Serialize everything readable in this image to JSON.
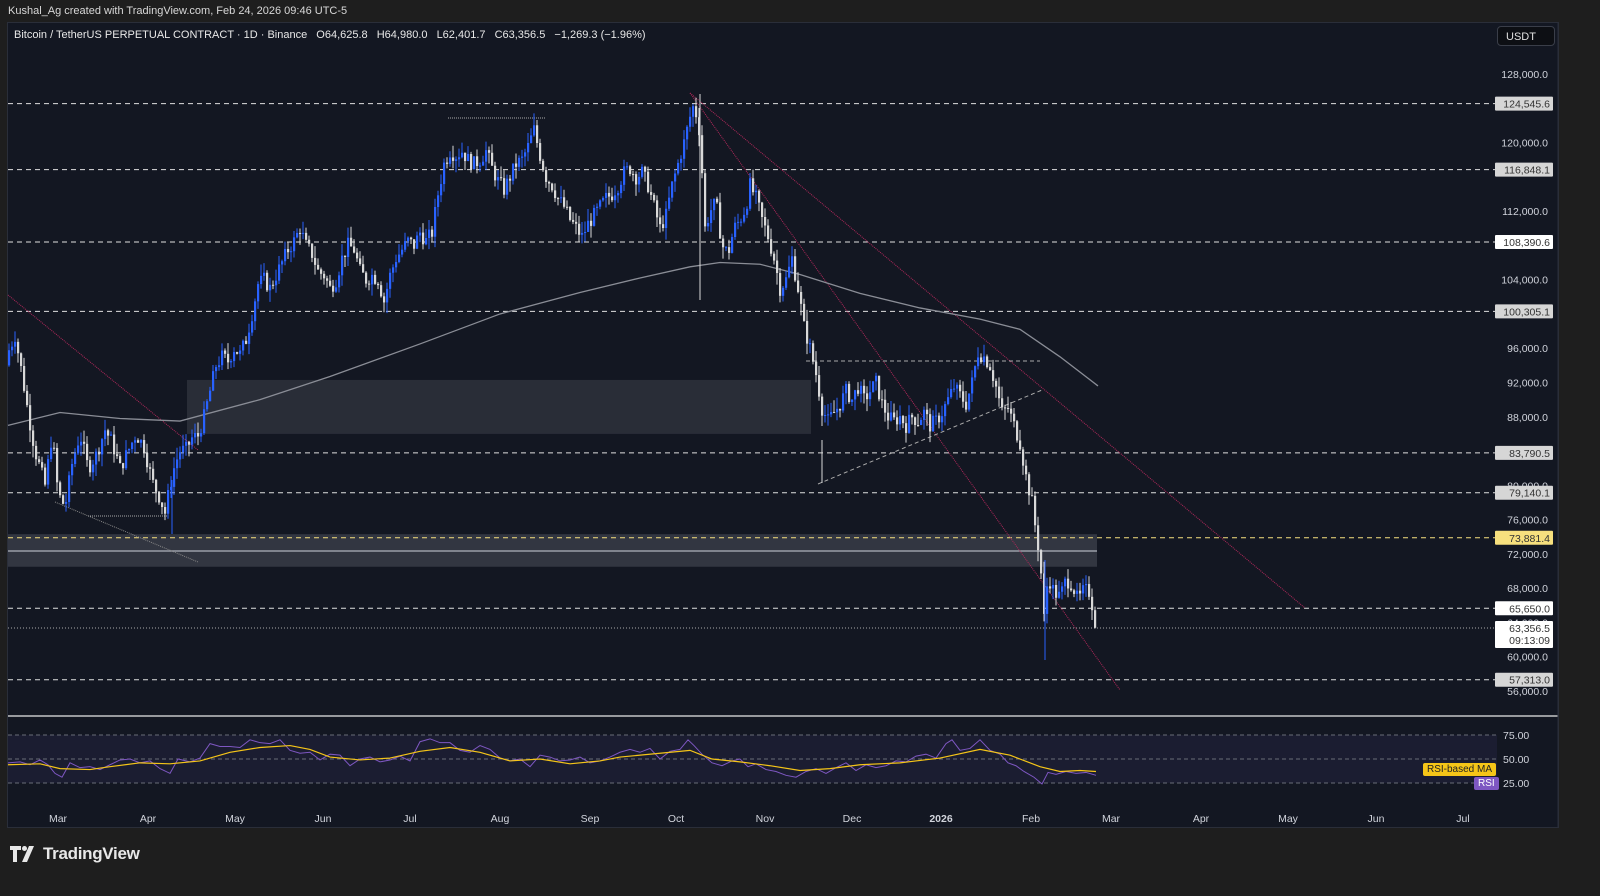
{
  "header": {
    "credit": "Kushal_Ag created with TradingView.com, Feb 24, 2026 09:46 UTC-5",
    "symbol": "Bitcoin / TetherUS PERPETUAL CONTRACT · 1D · Binance",
    "open": "O64,625.8",
    "high": "H64,980.0",
    "low": "L62,401.7",
    "close": "C63,356.5",
    "change": "−1,269.3 (−1.96%)",
    "currency": "USDT"
  },
  "footer": {
    "brand": "TradingView"
  },
  "colors": {
    "background": "#131722",
    "up_candle": "#2962ff",
    "down_candle": "#d9d9d9",
    "ma_line": "#8a8d96",
    "trendline_red": "#b0285a",
    "rsi_line": "#7e57c2",
    "rsi_ma": "#f5c518",
    "highlight_level": "#f7e07e"
  },
  "rsi_panel": {
    "ma_label": "RSI-based MA",
    "rsi_label": "RSI",
    "levels": [
      "75.00",
      "50.00",
      "25.00"
    ]
  },
  "chart_data": {
    "type": "candlestick",
    "title": "Bitcoin / TetherUS PERPETUAL CONTRACT · 1D · Binance",
    "ylabel": "USDT",
    "ylim": [
      54000,
      130000
    ],
    "y_ticks": [
      "128,000.0",
      "120,000.0",
      "112,000.0",
      "104,000.0",
      "96,000.0",
      "92,000.0",
      "88,000.0",
      "80,000.0",
      "76,000.0",
      "72,000.0",
      "68,000.0",
      "64,000.0",
      "60,000.0",
      "56,000.0"
    ],
    "x_ticks": [
      "Mar",
      "Apr",
      "May",
      "Jun",
      "Jul",
      "Aug",
      "Sep",
      "Oct",
      "Nov",
      "Dec",
      "2026",
      "Feb",
      "Mar",
      "Apr",
      "May",
      "Jun",
      "Jul"
    ],
    "horizontal_levels": [
      {
        "value": "124,545.6",
        "style": "dashed"
      },
      {
        "value": "116,848.1",
        "style": "dashed"
      },
      {
        "value": "108,390.6",
        "style": "dashed"
      },
      {
        "value": "100,305.1",
        "style": "dashed"
      },
      {
        "value": "83,790.5",
        "style": "dashed"
      },
      {
        "value": "79,140.1",
        "style": "dashed"
      },
      {
        "value": "73,881.4",
        "style": "dashed-yellow"
      },
      {
        "value": "65,650.0",
        "style": "dashed"
      },
      {
        "value": "57,313.0",
        "style": "dashed"
      }
    ],
    "last_price": {
      "value": "63,356.5",
      "countdown": "09:13:09"
    },
    "zones": [
      {
        "name": "supply-zone",
        "from": 86000,
        "to": 92300
      },
      {
        "name": "demand-zone",
        "from": 70500,
        "to": 74300
      }
    ],
    "price_path": [
      [
        0,
        94000
      ],
      [
        8,
        95500
      ],
      [
        15,
        97500
      ],
      [
        22,
        93000
      ],
      [
        28,
        88500
      ],
      [
        35,
        84000
      ],
      [
        45,
        80000
      ],
      [
        52,
        86000
      ],
      [
        58,
        79000
      ],
      [
        65,
        77500
      ],
      [
        72,
        82500
      ],
      [
        80,
        86000
      ],
      [
        88,
        82000
      ],
      [
        96,
        83500
      ],
      [
        105,
        86500
      ],
      [
        112,
        85000
      ],
      [
        120,
        82000
      ],
      [
        128,
        84000
      ],
      [
        136,
        86000
      ],
      [
        144,
        84500
      ],
      [
        152,
        80500
      ],
      [
        160,
        78500
      ],
      [
        165,
        76800
      ],
      [
        170,
        80000
      ],
      [
        175,
        82500
      ],
      [
        180,
        84000
      ],
      [
        186,
        84200
      ],
      [
        192,
        85500
      ],
      [
        198,
        85800
      ],
      [
        204,
        88000
      ],
      [
        210,
        91000
      ],
      [
        216,
        94000
      ],
      [
        222,
        95000
      ],
      [
        228,
        94500
      ],
      [
        234,
        96000
      ],
      [
        240,
        95300
      ],
      [
        246,
        97000
      ],
      [
        252,
        100000
      ],
      [
        258,
        103500
      ],
      [
        264,
        104000
      ],
      [
        270,
        103000
      ],
      [
        276,
        104500
      ],
      [
        282,
        106000
      ],
      [
        288,
        107500
      ],
      [
        294,
        108500
      ],
      [
        300,
        110000
      ],
      [
        306,
        108000
      ],
      [
        312,
        107000
      ],
      [
        318,
        105000
      ],
      [
        324,
        104500
      ],
      [
        330,
        103000
      ],
      [
        336,
        104000
      ],
      [
        342,
        106500
      ],
      [
        348,
        108000
      ],
      [
        354,
        107500
      ],
      [
        360,
        105000
      ],
      [
        366,
        104000
      ],
      [
        372,
        104500
      ],
      [
        378,
        104000
      ],
      [
        384,
        101500
      ],
      [
        390,
        104500
      ],
      [
        396,
        106500
      ],
      [
        402,
        107500
      ],
      [
        408,
        108500
      ],
      [
        414,
        108000
      ],
      [
        420,
        109500
      ],
      [
        426,
        108500
      ],
      [
        432,
        109500
      ],
      [
        438,
        114000
      ],
      [
        444,
        117500
      ],
      [
        450,
        119000
      ],
      [
        456,
        118500
      ],
      [
        462,
        119000
      ],
      [
        468,
        118000
      ],
      [
        474,
        117500
      ],
      [
        480,
        118000
      ],
      [
        486,
        119000
      ],
      [
        492,
        117000
      ],
      [
        498,
        115500
      ],
      [
        504,
        114500
      ],
      [
        510,
        116000
      ],
      [
        516,
        117500
      ],
      [
        522,
        118000
      ],
      [
        528,
        119500
      ],
      [
        534,
        121500
      ],
      [
        540,
        118500
      ],
      [
        546,
        116000
      ],
      [
        552,
        115000
      ],
      [
        558,
        113500
      ],
      [
        564,
        112500
      ],
      [
        570,
        111000
      ],
      [
        576,
        110000
      ],
      [
        582,
        109000
      ],
      [
        588,
        110500
      ],
      [
        594,
        111500
      ],
      [
        600,
        112500
      ],
      [
        606,
        113500
      ],
      [
        612,
        114000
      ],
      [
        618,
        115000
      ],
      [
        624,
        116500
      ],
      [
        630,
        117000
      ],
      [
        636,
        116000
      ],
      [
        642,
        116500
      ],
      [
        648,
        115000
      ],
      [
        654,
        112500
      ],
      [
        660,
        110000
      ],
      [
        666,
        111500
      ],
      [
        672,
        115000
      ],
      [
        678,
        117500
      ],
      [
        684,
        120000
      ],
      [
        690,
        123000
      ],
      [
        694,
        124500
      ],
      [
        700,
        121000
      ],
      [
        705,
        110000
      ],
      [
        710,
        112000
      ],
      [
        716,
        113000
      ],
      [
        722,
        108000
      ],
      [
        728,
        107000
      ],
      [
        734,
        110000
      ],
      [
        740,
        111000
      ],
      [
        746,
        112500
      ],
      [
        750,
        115000
      ],
      [
        756,
        113500
      ],
      [
        762,
        111000
      ],
      [
        768,
        109000
      ],
      [
        774,
        106500
      ],
      [
        780,
        103000
      ],
      [
        786,
        104000
      ],
      [
        792,
        106500
      ],
      [
        798,
        103000
      ],
      [
        804,
        98500
      ],
      [
        810,
        96000
      ],
      [
        816,
        93000
      ],
      [
        822,
        89000
      ],
      [
        828,
        87500
      ],
      [
        834,
        88500
      ],
      [
        840,
        89500
      ],
      [
        846,
        91000
      ],
      [
        852,
        90000
      ],
      [
        858,
        91500
      ],
      [
        864,
        90000
      ],
      [
        870,
        91000
      ],
      [
        876,
        92000
      ],
      [
        882,
        89500
      ],
      [
        888,
        88000
      ],
      [
        894,
        87500
      ],
      [
        900,
        88000
      ],
      [
        906,
        87000
      ],
      [
        912,
        88000
      ],
      [
        918,
        87500
      ],
      [
        924,
        88500
      ],
      [
        930,
        87000
      ],
      [
        936,
        87500
      ],
      [
        942,
        88500
      ],
      [
        948,
        90000
      ],
      [
        954,
        91500
      ],
      [
        960,
        90500
      ],
      [
        966,
        89500
      ],
      [
        972,
        92000
      ],
      [
        978,
        95500
      ],
      [
        984,
        95000
      ],
      [
        990,
        94000
      ],
      [
        996,
        91500
      ],
      [
        1002,
        88500
      ],
      [
        1008,
        89000
      ],
      [
        1014,
        87000
      ],
      [
        1020,
        85000
      ],
      [
        1026,
        81000
      ],
      [
        1032,
        78000
      ],
      [
        1036,
        74500
      ],
      [
        1040,
        71500
      ],
      [
        1044,
        64500
      ],
      [
        1048,
        69500
      ],
      [
        1054,
        67500
      ],
      [
        1060,
        67000
      ],
      [
        1066,
        69000
      ],
      [
        1072,
        68500
      ],
      [
        1078,
        66500
      ],
      [
        1084,
        67800
      ],
      [
        1090,
        67500
      ],
      [
        1096,
        63400
      ]
    ],
    "ma_path": [
      [
        8,
        87000
      ],
      [
        60,
        88500
      ],
      [
        120,
        87800
      ],
      [
        180,
        87500
      ],
      [
        260,
        90000
      ],
      [
        330,
        92700
      ],
      [
        420,
        96500
      ],
      [
        500,
        100000
      ],
      [
        580,
        102500
      ],
      [
        640,
        104200
      ],
      [
        690,
        105500
      ],
      [
        720,
        106000
      ],
      [
        760,
        105800
      ],
      [
        800,
        104600
      ],
      [
        860,
        102400
      ],
      [
        920,
        100700
      ],
      [
        980,
        99400
      ],
      [
        1020,
        98200
      ],
      [
        1060,
        95000
      ],
      [
        1098,
        91600
      ]
    ],
    "rsi_series": {
      "ylim": [
        15,
        85
      ],
      "rsi": [
        [
          8,
          46
        ],
        [
          20,
          47
        ],
        [
          30,
          44
        ],
        [
          40,
          49
        ],
        [
          48,
          44
        ],
        [
          55,
          35
        ],
        [
          62,
          31
        ],
        [
          70,
          46
        ],
        [
          80,
          41
        ],
        [
          90,
          42
        ],
        [
          100,
          39
        ],
        [
          110,
          44
        ],
        [
          120,
          49
        ],
        [
          130,
          50
        ],
        [
          140,
          46
        ],
        [
          150,
          48
        ],
        [
          160,
          40
        ],
        [
          170,
          35
        ],
        [
          178,
          50
        ],
        [
          190,
          47
        ],
        [
          200,
          51
        ],
        [
          210,
          66
        ],
        [
          220,
          63
        ],
        [
          230,
          63
        ],
        [
          240,
          62
        ],
        [
          250,
          70
        ],
        [
          260,
          67
        ],
        [
          270,
          66
        ],
        [
          280,
          70
        ],
        [
          290,
          59
        ],
        [
          300,
          56
        ],
        [
          310,
          57
        ],
        [
          320,
          49
        ],
        [
          330,
          55
        ],
        [
          340,
          54
        ],
        [
          350,
          43
        ],
        [
          360,
          50
        ],
        [
          370,
          52
        ],
        [
          380,
          47
        ],
        [
          390,
          49
        ],
        [
          400,
          53
        ],
        [
          410,
          48
        ],
        [
          420,
          68
        ],
        [
          430,
          71
        ],
        [
          440,
          67
        ],
        [
          450,
          67
        ],
        [
          460,
          59
        ],
        [
          470,
          57
        ],
        [
          480,
          64
        ],
        [
          490,
          60
        ],
        [
          500,
          51
        ],
        [
          510,
          48
        ],
        [
          520,
          50
        ],
        [
          530,
          42
        ],
        [
          540,
          54
        ],
        [
          550,
          52
        ],
        [
          560,
          48
        ],
        [
          570,
          49
        ],
        [
          580,
          52
        ],
        [
          590,
          46
        ],
        [
          600,
          48
        ],
        [
          610,
          52
        ],
        [
          620,
          57
        ],
        [
          630,
          60
        ],
        [
          640,
          57
        ],
        [
          650,
          61
        ],
        [
          660,
          50
        ],
        [
          670,
          58
        ],
        [
          680,
          60
        ],
        [
          688,
          70
        ],
        [
          694,
          64
        ],
        [
          702,
          55
        ],
        [
          712,
          46
        ],
        [
          722,
          43
        ],
        [
          732,
          48
        ],
        [
          740,
          50
        ],
        [
          748,
          42
        ],
        [
          756,
          45
        ],
        [
          766,
          39
        ],
        [
          776,
          37
        ],
        [
          786,
          33
        ],
        [
          796,
          31
        ],
        [
          806,
          37
        ],
        [
          816,
          40
        ],
        [
          826,
          35
        ],
        [
          836,
          41
        ],
        [
          846,
          46
        ],
        [
          856,
          38
        ],
        [
          866,
          44
        ],
        [
          876,
          41
        ],
        [
          886,
          43
        ],
        [
          896,
          48
        ],
        [
          906,
          47
        ],
        [
          916,
          53
        ],
        [
          926,
          55
        ],
        [
          936,
          51
        ],
        [
          946,
          66
        ],
        [
          952,
          70
        ],
        [
          960,
          59
        ],
        [
          970,
          61
        ],
        [
          980,
          70
        ],
        [
          990,
          59
        ],
        [
          1000,
          55
        ],
        [
          1008,
          46
        ],
        [
          1016,
          43
        ],
        [
          1024,
          37
        ],
        [
          1034,
          31
        ],
        [
          1042,
          24
        ],
        [
          1048,
          36
        ],
        [
          1056,
          34
        ],
        [
          1066,
          37
        ],
        [
          1076,
          35
        ],
        [
          1086,
          36
        ],
        [
          1096,
          33
        ]
      ],
      "ma": [
        [
          8,
          44
        ],
        [
          40,
          45
        ],
        [
          60,
          40
        ],
        [
          90,
          39
        ],
        [
          110,
          42
        ],
        [
          140,
          46
        ],
        [
          170,
          45
        ],
        [
          200,
          48
        ],
        [
          230,
          57
        ],
        [
          260,
          62
        ],
        [
          290,
          64
        ],
        [
          310,
          60
        ],
        [
          330,
          52
        ],
        [
          360,
          49
        ],
        [
          390,
          51
        ],
        [
          420,
          58
        ],
        [
          450,
          62
        ],
        [
          480,
          57
        ],
        [
          510,
          48
        ],
        [
          540,
          50
        ],
        [
          570,
          45
        ],
        [
          600,
          48
        ],
        [
          620,
          52
        ],
        [
          660,
          56
        ],
        [
          690,
          59
        ],
        [
          712,
          50
        ],
        [
          740,
          47
        ],
        [
          770,
          43
        ],
        [
          800,
          38
        ],
        [
          830,
          40
        ],
        [
          860,
          44
        ],
        [
          900,
          46
        ],
        [
          940,
          51
        ],
        [
          980,
          60
        ],
        [
          1010,
          54
        ],
        [
          1040,
          42
        ],
        [
          1060,
          37
        ],
        [
          1080,
          38
        ],
        [
          1096,
          37
        ]
      ]
    }
  }
}
